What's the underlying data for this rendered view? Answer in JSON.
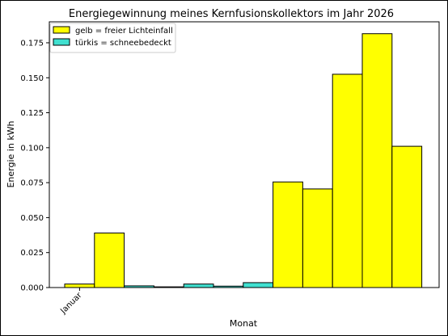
{
  "chart_data": {
    "type": "bar",
    "title": "Energiegewinnung meines Kernfusionskollektors im Jahr 2026",
    "xlabel": "Monat",
    "ylabel": "Energie in kWh",
    "x_tick_labels": [
      "Januar"
    ],
    "ylim": [
      0,
      0.19
    ],
    "y_ticks": [
      "0.000",
      "0.025",
      "0.050",
      "0.075",
      "0.100",
      "0.125",
      "0.150",
      "0.175"
    ],
    "grid": false,
    "legend_position": "top-left",
    "legend": [
      {
        "label": "gelb = freier Lichteinfall",
        "color": "#ffff00"
      },
      {
        "label": "türkis = schneebedeckt",
        "color": "#40e0d0"
      }
    ],
    "bars": [
      {
        "index": 0,
        "value": 0.0025,
        "status": "gelb"
      },
      {
        "index": 1,
        "value": 0.039,
        "status": "gelb"
      },
      {
        "index": 2,
        "value": 0.0012,
        "status": "türkis"
      },
      {
        "index": 3,
        "value": 0.0005,
        "status": "türkis"
      },
      {
        "index": 4,
        "value": 0.0025,
        "status": "türkis"
      },
      {
        "index": 5,
        "value": 0.001,
        "status": "türkis"
      },
      {
        "index": 6,
        "value": 0.0035,
        "status": "türkis"
      },
      {
        "index": 7,
        "value": 0.0755,
        "status": "gelb"
      },
      {
        "index": 8,
        "value": 0.0705,
        "status": "gelb"
      },
      {
        "index": 9,
        "value": 0.1525,
        "status": "gelb"
      },
      {
        "index": 10,
        "value": 0.1815,
        "status": "gelb"
      },
      {
        "index": 11,
        "value": 0.101,
        "status": "gelb"
      }
    ],
    "colors": {
      "gelb": "#ffff00",
      "türkis": "#40e0d0",
      "edge": "#000000"
    }
  }
}
